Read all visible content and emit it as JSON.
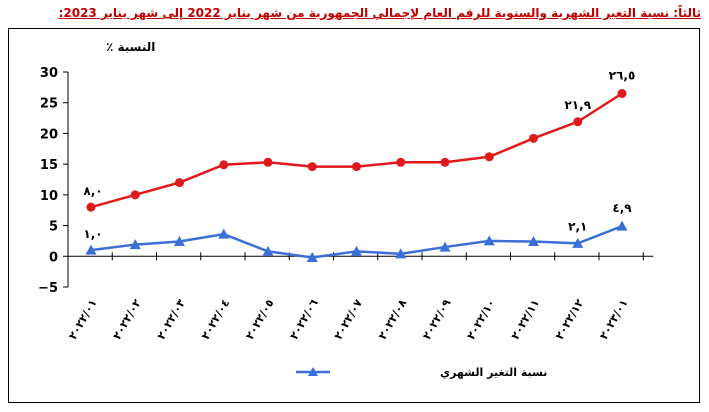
{
  "title": "ثالثاً: نسبة التغير الشهرية والسنوية للرقم العام لإجمالي الجمهورية من شهر يناير 2022 إلى شهر يناير 2023:",
  "chart_data": {
    "type": "line",
    "title": "ثالثاً: نسبة التغير الشهرية والسنوية للرقم العام لإجمالي الجمهورية من شهر يناير 2022 إلى شهر يناير 2023:",
    "ylabel": "النسبة ٪",
    "xlabel": "",
    "ylim": [
      -5,
      30
    ],
    "yticks": [
      -5,
      0,
      5,
      10,
      15,
      20,
      25,
      30
    ],
    "grid": false,
    "legend_position": "bottom",
    "categories": [
      "٢٠٢٢/٠١",
      "٢٠٢٢/٠٢",
      "٢٠٢٢/٠٣",
      "٢٠٢٢/٠٤",
      "٢٠٢٢/٠٥",
      "٢٠٢٢/٠٦",
      "٢٠٢٢/٠٧",
      "٢٠٢٢/٠٨",
      "٢٠٢٢/٠٩",
      "٢٠٢٢/١٠",
      "٢٠٢٢/١١",
      "٢٠٢٢/١٢",
      "٢٠٢٣/٠١"
    ],
    "series": [
      {
        "color": "#e0191c",
        "marker": "circle",
        "values": [
          8.0,
          10.0,
          12.0,
          14.9,
          15.3,
          14.6,
          14.6,
          15.3,
          15.3,
          16.2,
          19.2,
          21.9,
          26.5
        ],
        "labels": {
          "0": "٨,٠",
          "11": "٢١,٩",
          "12": "٢٦,٥"
        }
      },
      {
        "name": "نسبة التغير الشهري",
        "color": "#3a6fd8",
        "marker": "triangle",
        "values": [
          1.0,
          1.9,
          2.4,
          3.6,
          0.8,
          -0.2,
          0.8,
          0.4,
          1.5,
          2.5,
          2.4,
          2.1,
          4.9
        ],
        "labels": {
          "0": "١,٠",
          "11": "٢,١",
          "12": "٤,٩"
        }
      }
    ]
  }
}
